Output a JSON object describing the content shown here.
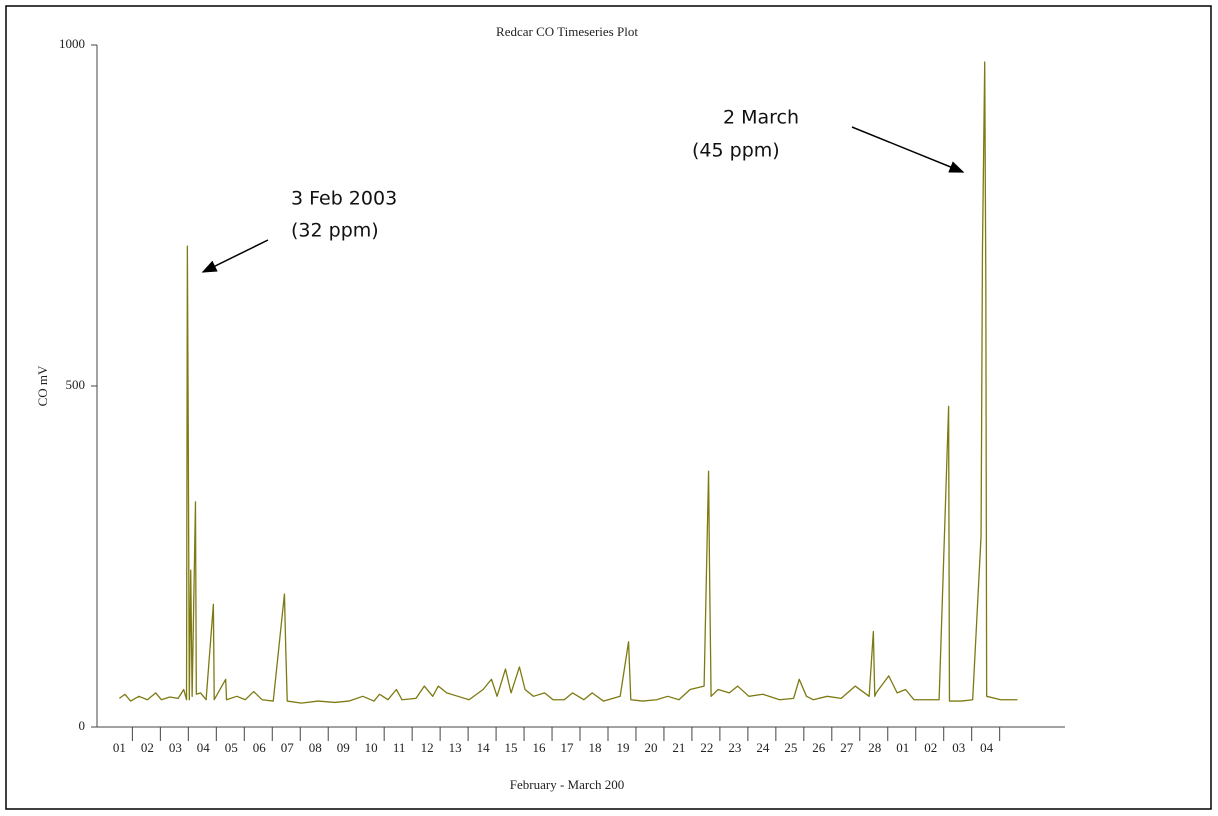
{
  "chart_data": {
    "type": "line",
    "title": "Redcar CO Timeseries Plot",
    "x_label": "February - March 200",
    "y_label": "CO mV",
    "annotations": [
      {
        "lines": [
          "3 Feb 2003",
          "(32 ppm)"
        ]
      },
      {
        "lines": [
          "2 March",
          "(45 ppm)"
        ]
      }
    ],
    "x": [
      0,
      0.2,
      0.4,
      0.7,
      1.0,
      1.3,
      1.5,
      1.8,
      2.1,
      2.3,
      2.4,
      2.43,
      2.46,
      2.5,
      2.55,
      2.6,
      2.72,
      2.75,
      2.9,
      3.1,
      3.36,
      3.39,
      3.8,
      3.83,
      4.2,
      4.5,
      4.8,
      5.1,
      5.5,
      5.9,
      5.95,
      6.0,
      6.5,
      7.1,
      7.7,
      8.2,
      8.7,
      9.1,
      9.3,
      9.6,
      9.9,
      10.1,
      10.6,
      10.9,
      11.2,
      11.4,
      11.7,
      12.1,
      12.5,
      13.0,
      13.3,
      13.5,
      13.8,
      14.0,
      14.3,
      14.5,
      14.8,
      15.2,
      15.5,
      15.9,
      16.2,
      16.6,
      16.9,
      17.3,
      17.9,
      18.2,
      18.28,
      18.7,
      19.2,
      19.6,
      20.0,
      20.4,
      20.9,
      21.06,
      21.1,
      21.15,
      21.4,
      21.8,
      22.1,
      22.5,
      23.0,
      23.6,
      24.1,
      24.3,
      24.56,
      24.8,
      25.3,
      25.8,
      26.3,
      26.8,
      26.95,
      27.0,
      27.05,
      27.5,
      27.8,
      28.1,
      28.4,
      28.8,
      29.3,
      29.64,
      29.67,
      30.1,
      30.5,
      30.8,
      30.85,
      30.93,
      30.97,
      31.0,
      31.5,
      32.1
    ],
    "series": [
      {
        "name": "CO",
        "color": "#7d7a12",
        "values": [
          42,
          48,
          38,
          45,
          40,
          50,
          40,
          44,
          42,
          55,
          40,
          705,
          450,
          40,
          230,
          45,
          330,
          48,
          50,
          40,
          180,
          40,
          70,
          40,
          45,
          40,
          52,
          40,
          38,
          195,
          110,
          38,
          35,
          38,
          36,
          38,
          45,
          38,
          48,
          40,
          55,
          40,
          42,
          60,
          45,
          60,
          50,
          45,
          40,
          55,
          70,
          45,
          85,
          50,
          88,
          55,
          45,
          50,
          40,
          40,
          50,
          40,
          50,
          38,
          45,
          125,
          40,
          38,
          40,
          45,
          40,
          55,
          60,
          375,
          210,
          45,
          55,
          50,
          60,
          45,
          48,
          40,
          42,
          70,
          45,
          40,
          45,
          42,
          60,
          45,
          140,
          45,
          50,
          75,
          50,
          55,
          40,
          40,
          40,
          470,
          38,
          38,
          40,
          280,
          700,
          975,
          650,
          45,
          40,
          40
        ]
      }
    ],
    "xlim": [
      -0.8,
      33.8
    ],
    "ylim": [
      0,
      1000
    ],
    "yticks": [
      0,
      500,
      1000
    ],
    "xticks": [
      {
        "value": 0,
        "label": "01"
      },
      {
        "value": 1,
        "label": "02"
      },
      {
        "value": 2,
        "label": "03"
      },
      {
        "value": 3,
        "label": "04"
      },
      {
        "value": 4,
        "label": "05"
      },
      {
        "value": 5,
        "label": "06"
      },
      {
        "value": 6,
        "label": "07"
      },
      {
        "value": 7,
        "label": "08"
      },
      {
        "value": 8,
        "label": "09"
      },
      {
        "value": 9,
        "label": "10"
      },
      {
        "value": 10,
        "label": "11"
      },
      {
        "value": 11,
        "label": "12"
      },
      {
        "value": 12,
        "label": "13"
      },
      {
        "value": 13,
        "label": "14"
      },
      {
        "value": 14,
        "label": "15"
      },
      {
        "value": 15,
        "label": "16"
      },
      {
        "value": 16,
        "label": "17"
      },
      {
        "value": 17,
        "label": "18"
      },
      {
        "value": 18,
        "label": "19"
      },
      {
        "value": 19,
        "label": "20"
      },
      {
        "value": 20,
        "label": "21"
      },
      {
        "value": 21,
        "label": "22"
      },
      {
        "value": 22,
        "label": "23"
      },
      {
        "value": 23,
        "label": "24"
      },
      {
        "value": 24,
        "label": "25"
      },
      {
        "value": 25,
        "label": "26"
      },
      {
        "value": 26,
        "label": "27"
      },
      {
        "value": 27,
        "label": "28"
      },
      {
        "value": 28,
        "label": "01"
      },
      {
        "value": 29,
        "label": "02"
      },
      {
        "value": 30,
        "label": "03"
      },
      {
        "value": 31,
        "label": "04"
      }
    ]
  }
}
